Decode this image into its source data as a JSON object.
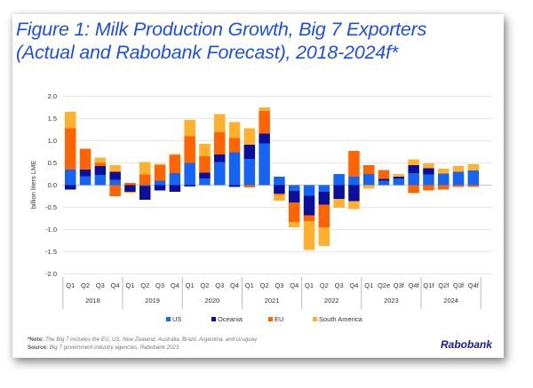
{
  "figure": {
    "title_line1": "Figure 1: Milk Production Growth, Big 7 Exporters",
    "title_line2": "(Actual and Rabobank Forecast), 2018-2024f*",
    "note_label": "*Note:",
    "note_text": "The Big 7 includes the EU, US, New Zealand, Australia, Brazil, Argentina, and Uruguay.",
    "source_label": "Source:",
    "source_text": "Big 7 government industry agencies, Rabobank 2023",
    "brand": "Rabobank"
  },
  "chart_data": {
    "type": "bar",
    "stacked": true,
    "title": "Figure 1: Milk Production Growth, Big 7 Exporters (Actual and Rabobank Forecast), 2018-2024f*",
    "xlabel": "",
    "ylabel": "billion liters LME",
    "ylim": [
      -2.0,
      2.0
    ],
    "yticks": [
      2.0,
      1.5,
      1.0,
      0.5,
      0.0,
      -0.5,
      -1.0,
      -1.5,
      -2.0
    ],
    "ytick_labels": [
      "2.0",
      "1.5",
      "1.0",
      "0.5",
      "0.0",
      "-0.5",
      "-1.0",
      "-1.5",
      "-2.0"
    ],
    "grid": true,
    "legend_position": "bottom",
    "categories": [
      "Q1",
      "Q2",
      "Q3",
      "Q4",
      "Q1",
      "Q2",
      "Q3",
      "Q4",
      "Q1",
      "Q2",
      "Q3",
      "Q4",
      "Q1",
      "Q2",
      "Q3",
      "Q4",
      "Q1",
      "Q2",
      "Q3",
      "Q4",
      "Q1",
      "Q2e",
      "Q3f",
      "Q4f",
      "Q1f",
      "Q2f",
      "Q3f",
      "Q4f"
    ],
    "groups": [
      {
        "label": "2018",
        "count": 4
      },
      {
        "label": "2019",
        "count": 4
      },
      {
        "label": "2020",
        "count": 4
      },
      {
        "label": "2021",
        "count": 4
      },
      {
        "label": "2022",
        "count": 4
      },
      {
        "label": "2023",
        "count": 4
      },
      {
        "label": "2024",
        "count": 4
      }
    ],
    "series": [
      {
        "name": "US",
        "color": "#1565f5",
        "values": [
          0.35,
          0.2,
          0.23,
          0.12,
          0.0,
          -0.02,
          0.1,
          0.27,
          0.5,
          0.15,
          0.52,
          0.74,
          0.59,
          0.94,
          0.19,
          -0.13,
          -0.24,
          -0.15,
          0.25,
          0.19,
          0.25,
          0.1,
          0.15,
          0.27,
          0.24,
          0.26,
          0.3,
          0.33
        ]
      },
      {
        "name": "Oceania",
        "color": "#0b0f9c",
        "values": [
          -0.1,
          0.15,
          0.2,
          0.18,
          -0.15,
          -0.31,
          -0.12,
          -0.15,
          -0.03,
          0.13,
          0.17,
          -0.04,
          0.32,
          0.22,
          -0.19,
          -0.26,
          -0.44,
          -0.29,
          -0.31,
          -0.36,
          0.0,
          0.04,
          0.04,
          0.18,
          0.14,
          0.0,
          0.0,
          0.0
        ]
      },
      {
        "name": "EU",
        "color": "#ff6400",
        "values": [
          0.93,
          0.47,
          0.07,
          -0.25,
          0.05,
          0.24,
          0.35,
          0.41,
          0.6,
          0.37,
          0.5,
          0.32,
          -0.05,
          0.51,
          -0.03,
          -0.44,
          -0.13,
          -0.51,
          0.0,
          0.58,
          0.2,
          0.2,
          0.0,
          -0.18,
          -0.12,
          -0.1,
          -0.04,
          -0.04
        ]
      },
      {
        "name": "South America",
        "color": "#ffb12e",
        "values": [
          0.37,
          0.0,
          0.12,
          0.15,
          -0.03,
          0.28,
          0.03,
          0.02,
          0.37,
          0.28,
          0.41,
          0.36,
          0.37,
          0.08,
          -0.13,
          -0.12,
          -0.65,
          -0.42,
          -0.2,
          -0.18,
          -0.08,
          0.0,
          0.06,
          0.13,
          0.11,
          0.11,
          0.13,
          0.14
        ]
      }
    ]
  }
}
